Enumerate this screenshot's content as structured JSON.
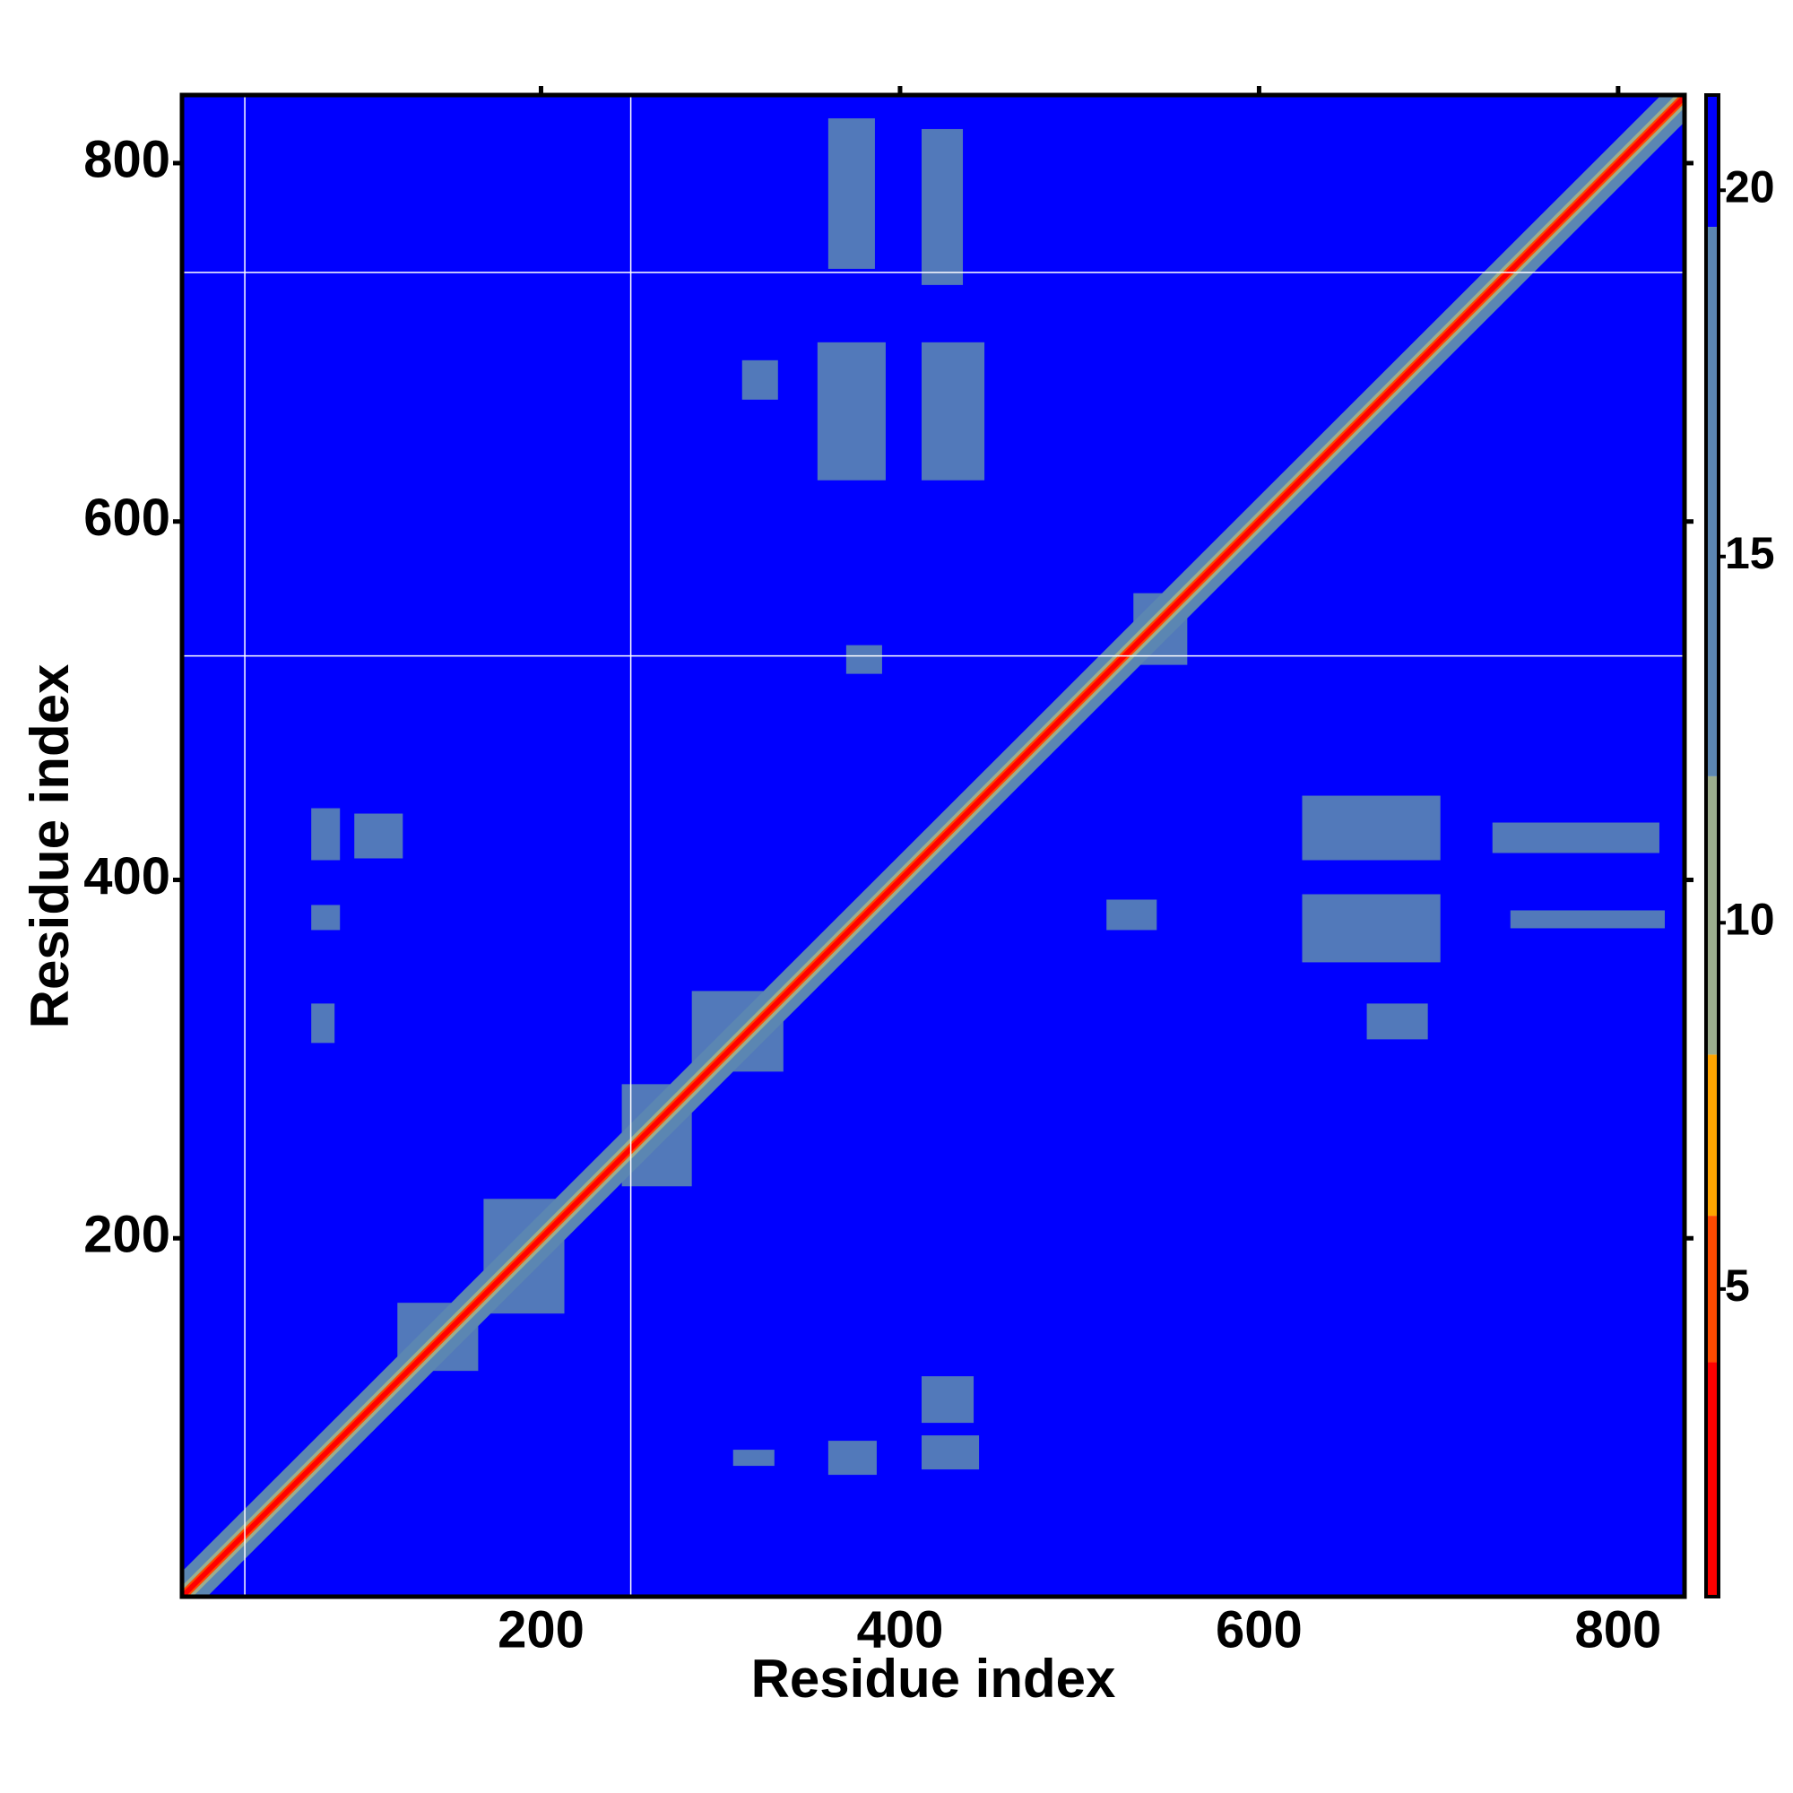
{
  "chart_data": {
    "type": "heatmap",
    "x_label": "Residue index",
    "y_label": "Residue index",
    "xlim": [
      0,
      837
    ],
    "ylim": [
      0,
      838
    ],
    "xticks": [
      200,
      400,
      600,
      800
    ],
    "yticks": [
      200,
      400,
      600,
      800
    ],
    "background_value": 21,
    "clim": [
      0.8,
      21.3
    ],
    "cticks": [
      5,
      10,
      15,
      20
    ],
    "levels": [
      0.8,
      4,
      6,
      8.2,
      12,
      19.5,
      21.3
    ],
    "level_colors": [
      "#ff0000",
      "#ff4a00",
      "#ffa500",
      "#9cae8e",
      "#5b86b2",
      "#0000ff"
    ],
    "separators_x": [
      35,
      250
    ],
    "separators_y": [
      525,
      739
    ],
    "diagonal_bands": [
      {
        "half_width": 14,
        "value": 15
      },
      {
        "half_width": 6,
        "value": 10
      },
      {
        "half_width": 3.5,
        "value": 6
      },
      {
        "half_width": 2,
        "value": 2
      }
    ],
    "blocks": [
      {
        "x": [
          354,
          392
        ],
        "y": [
          623,
          700
        ],
        "value": 17
      },
      {
        "x": [
          624,
          701
        ],
        "y": [
          354,
          392
        ],
        "value": 17
      },
      {
        "x": [
          412,
          447
        ],
        "y": [
          623,
          700
        ],
        "value": 17
      },
      {
        "x": [
          624,
          701
        ],
        "y": [
          411,
          447
        ],
        "value": 17
      },
      {
        "x": [
          312,
          332
        ],
        "y": [
          668,
          690
        ],
        "value": 17
      },
      {
        "x": [
          660,
          694
        ],
        "y": [
          311,
          331
        ],
        "value": 17
      },
      {
        "x": [
          370,
          390
        ],
        "y": [
          515,
          531
        ],
        "value": 17
      },
      {
        "x": [
          515,
          543
        ],
        "y": [
          372,
          389
        ],
        "value": 17
      },
      {
        "x": [
          360,
          386
        ],
        "y": [
          741,
          825
        ],
        "value": 18
      },
      {
        "x": [
          412,
          435
        ],
        "y": [
          732,
          819
        ],
        "value": 18
      },
      {
        "x": [
          360,
          387
        ],
        "y": [
          68,
          87
        ],
        "value": 17
      },
      {
        "x": [
          412,
          444
        ],
        "y": [
          71,
          90
        ],
        "value": 17
      },
      {
        "x": [
          412,
          441
        ],
        "y": [
          97,
          123
        ],
        "value": 17
      },
      {
        "x": [
          307,
          330
        ],
        "y": [
          73,
          82
        ],
        "value": 17
      },
      {
        "x": [
          72,
          88
        ],
        "y": [
          411,
          440
        ],
        "value": 17
      },
      {
        "x": [
          96,
          123
        ],
        "y": [
          412,
          437
        ],
        "value": 17
      },
      {
        "x": [
          72,
          88
        ],
        "y": [
          372,
          386
        ],
        "value": 17
      },
      {
        "x": [
          72,
          85
        ],
        "y": [
          309,
          331
        ],
        "value": 17
      },
      {
        "x": [
          730,
          823
        ],
        "y": [
          415,
          432
        ],
        "value": 18
      },
      {
        "x": [
          740,
          826
        ],
        "y": [
          373,
          383
        ],
        "value": 18
      },
      {
        "x": [
          168,
          213
        ],
        "y": [
          158,
          222
        ],
        "value": 13
      },
      {
        "x": [
          120,
          165
        ],
        "y": [
          126,
          164
        ],
        "value": 13
      },
      {
        "x": [
          245,
          284
        ],
        "y": [
          229,
          286
        ],
        "value": 13
      },
      {
        "x": [
          284,
          335
        ],
        "y": [
          293,
          338
        ],
        "value": 13
      },
      {
        "x": [
          530,
          560
        ],
        "y": [
          520,
          560
        ],
        "value": 13
      }
    ]
  }
}
